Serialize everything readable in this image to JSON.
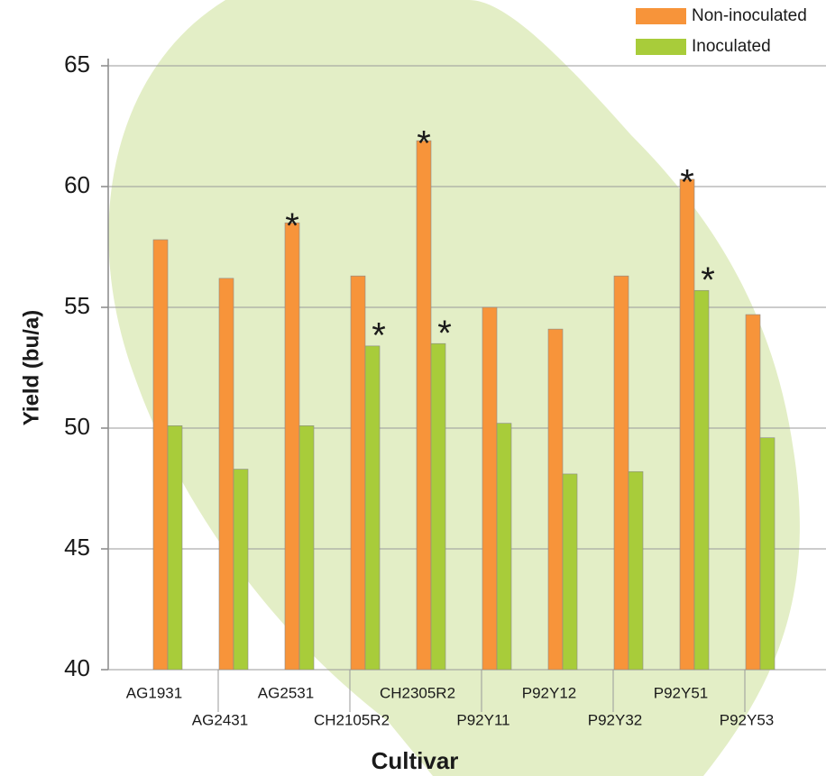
{
  "chart_data": {
    "type": "bar",
    "x_label": "Cultivar",
    "y_label": "Yield (bu/a)",
    "categories": [
      "AG1931",
      "AG2431",
      "AG2531",
      "CH2105R2",
      "CH2305R2",
      "P92Y11",
      "P92Y12",
      "P92Y32",
      "P92Y51",
      "P92Y53"
    ],
    "series": [
      {
        "name": "Non-inoculated",
        "color": "#f7943a",
        "values": [
          57.8,
          56.2,
          58.5,
          56.3,
          61.9,
          55.0,
          54.1,
          56.3,
          60.3,
          54.7
        ],
        "significant": [
          false,
          false,
          true,
          false,
          true,
          false,
          false,
          false,
          true,
          false
        ],
        "marker_color": "#1a1a1a"
      },
      {
        "name": "Inoculated",
        "color": "#a8cc3a",
        "values": [
          50.1,
          48.3,
          50.1,
          53.4,
          53.5,
          50.2,
          48.1,
          48.2,
          55.7,
          49.6
        ],
        "significant": [
          false,
          false,
          false,
          true,
          true,
          false,
          false,
          false,
          true,
          false
        ],
        "marker_color": "#1a9cb0"
      }
    ],
    "significance_marker": "*",
    "ylim": [
      40,
      65
    ],
    "yticks": [
      40,
      45,
      50,
      55,
      60,
      65
    ],
    "grid": true,
    "legend": "top-right"
  }
}
